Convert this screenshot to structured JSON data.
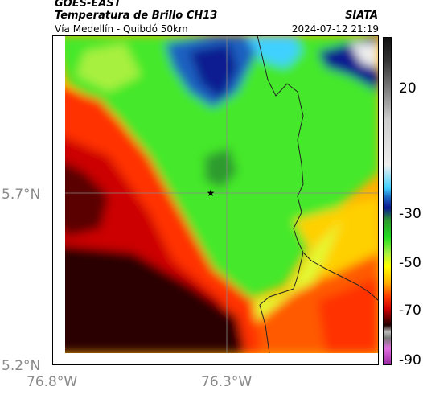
{
  "header": {
    "title": "GOES-EAST",
    "subtitle": "Temperatura de Brillo CH13",
    "location": "Vía Medellín - Quibdó 50km",
    "brand": "SIATA",
    "datetime": "2024-07-12 21:19"
  },
  "map": {
    "x_ticks": [
      "76.8°W",
      "76.3°W"
    ],
    "y_ticks": [
      "5.7°N",
      "5.2°N"
    ],
    "marker": "star-icon",
    "colors": {
      "cold": "#0a1a90",
      "warm": "#200000",
      "mid": "#22dd22",
      "warmish": "#ff4000"
    }
  },
  "colorbar": {
    "ticks": [
      "20",
      "-30",
      "-50",
      "-70",
      "-90"
    ]
  }
}
